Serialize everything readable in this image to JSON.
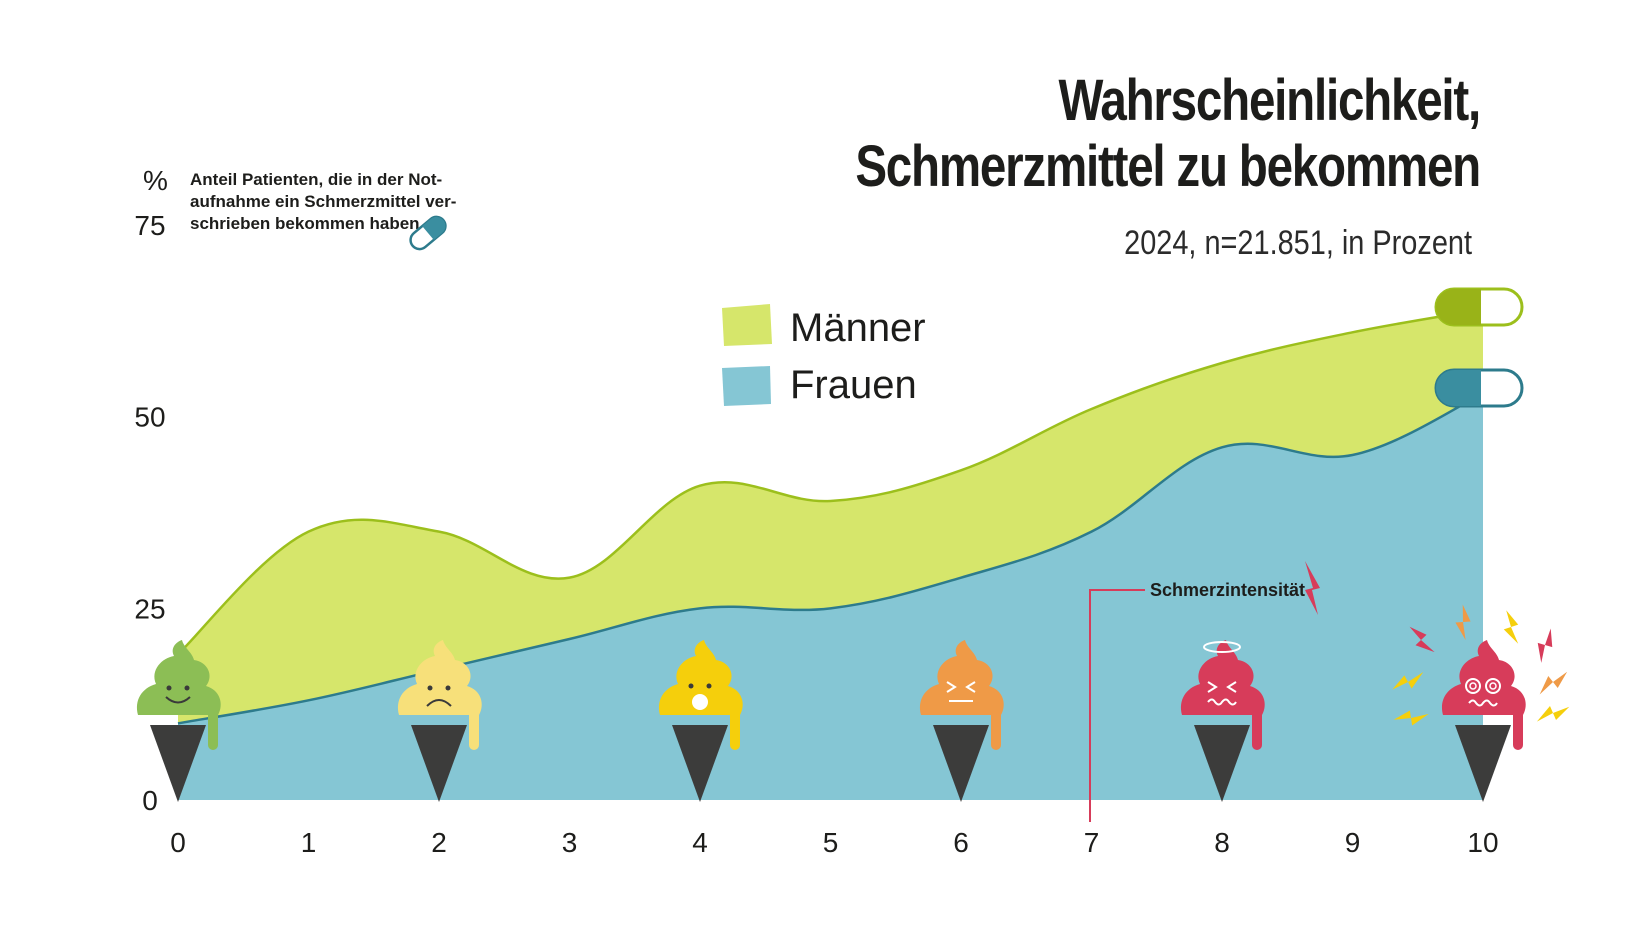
{
  "title": "Wahrscheinlichkeit, Schmerzmittel zu bekommen",
  "subtitle": "2024, n=21.851, in Prozent",
  "y_unit": "%",
  "y_note": [
    "Anteil Patienten, die in der Not-",
    "aufnahme ein Schmerzmittel ver-",
    "schrieben bekommen haben"
  ],
  "intensity_label": "Schmerzintensität",
  "colors": {
    "maenner_fill": "#d6e66b",
    "maenner_line": "#9cbf1c",
    "frauen_fill": "#85c6d4",
    "frauen_line": "#2d7b8c",
    "pill_green": "#99b318",
    "pill_teal": "#3a8ea0",
    "cone": "#3c3c3b"
  },
  "chart_data": {
    "type": "area",
    "x": [
      0,
      1,
      2,
      3,
      4,
      5,
      6,
      7,
      8,
      9,
      10
    ],
    "xticks": [
      "0",
      "1",
      "2",
      "3",
      "4",
      "5",
      "6",
      "7",
      "8",
      "9",
      "10"
    ],
    "xlabel": "Schmerzintensität",
    "ylabel": "%",
    "ylim": [
      0,
      75
    ],
    "yticks": [
      0,
      25,
      50,
      75
    ],
    "legend_position": "top-center",
    "grid": false,
    "series": [
      {
        "name": "Männer",
        "values": [
          19,
          35,
          35,
          29,
          41,
          39,
          43,
          51,
          57,
          61,
          64
        ]
      },
      {
        "name": "Frauen",
        "values": [
          10,
          13,
          17,
          21,
          25,
          25,
          29,
          35,
          46,
          45,
          53
        ]
      }
    ],
    "annotations": [
      {
        "x": 0,
        "mood": "happy",
        "color": "#8cbe55"
      },
      {
        "x": 2,
        "mood": "sad",
        "color": "#f7e07a"
      },
      {
        "x": 4,
        "mood": "shocked",
        "color": "#f5cf0c"
      },
      {
        "x": 6,
        "mood": "strained",
        "color": "#ef9a47"
      },
      {
        "x": 8,
        "mood": "dizzy",
        "color": "#d73c5a"
      },
      {
        "x": 10,
        "mood": "agony",
        "color": "#d73c5a"
      }
    ]
  }
}
